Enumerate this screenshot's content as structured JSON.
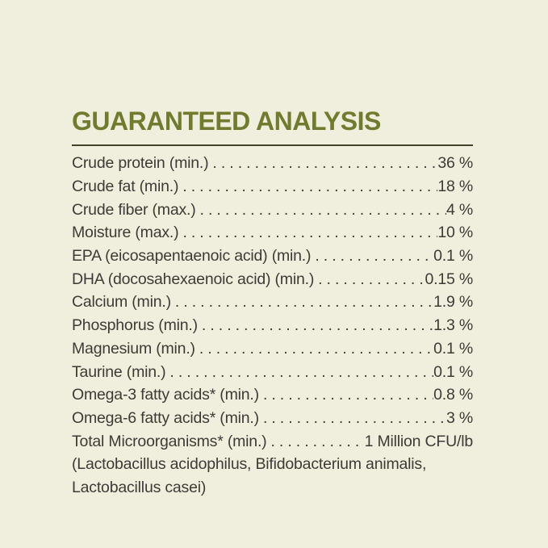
{
  "header": {
    "title": "GUARANTEED ANALYSIS"
  },
  "analysis": {
    "rows": [
      {
        "label": "Crude protein (min.)",
        "value": "36 %"
      },
      {
        "label": "Crude fat (min.)",
        "value": "18 %"
      },
      {
        "label": "Crude fiber (max.)",
        "value": "4 %"
      },
      {
        "label": "Moisture (max.)",
        "value": "10 %"
      },
      {
        "label": "EPA (eicosapentaenoic acid) (min.)",
        "value": "0.1 %"
      },
      {
        "label": "DHA (docosahexaenoic acid) (min.)",
        "value": "0.15 %"
      },
      {
        "label": "Calcium (min.)",
        "value": "1.9 %"
      },
      {
        "label": "Phosphorus (min.)",
        "value": "1.3 %"
      },
      {
        "label": "Magnesium (min.)",
        "value": "0.1 %"
      },
      {
        "label": "Taurine (min.)",
        "value": "0.1 %"
      },
      {
        "label": "Omega-3 fatty acids* (min.)",
        "value": "0.8 %"
      },
      {
        "label": "Omega-6 fatty acids* (min.)",
        "value": "3 %"
      },
      {
        "label": "Total Microorganisms* (min.)",
        "value": "1 Million CFU/lb"
      }
    ],
    "footnote_lines": [
      "(Lactobacillus acidophilus, Bifidobacterium animalis,",
      "Lactobacillus casei)"
    ]
  },
  "colors": {
    "background": "#f0eedd",
    "title": "#717b30",
    "rule": "#44412a",
    "text": "#3d3b35"
  }
}
